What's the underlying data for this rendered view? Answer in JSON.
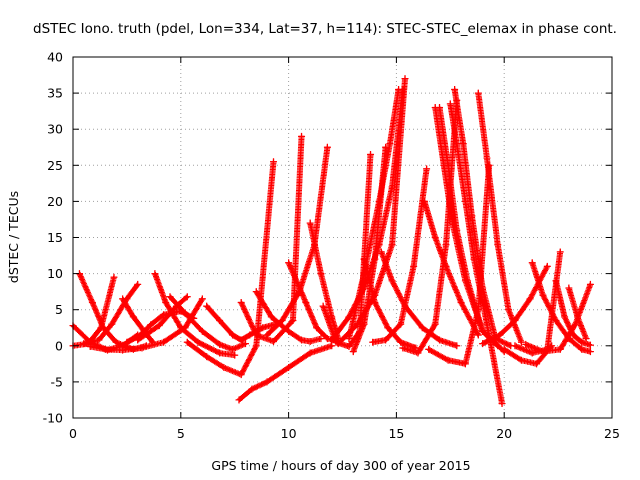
{
  "chart_data": {
    "type": "scatter",
    "title": "dSTEC Iono. truth (pdel, Lon=334, Lat=37, h=114): STEC-STEC_elemax in phase cont.",
    "xlabel": "GPS time / hours of day 300 of year 2015",
    "ylabel": "dSTEC  / TECUs",
    "xlim": [
      0,
      25
    ],
    "ylim": [
      -10,
      40
    ],
    "xticks": [
      0,
      5,
      10,
      15,
      20,
      25
    ],
    "yticks": [
      -10,
      -5,
      0,
      5,
      10,
      15,
      20,
      25,
      30,
      35,
      40
    ],
    "grid": true,
    "marker": "+",
    "color": "#ff0000",
    "series": [
      {
        "x": [
          0.0,
          0.8,
          1.6,
          2.3,
          3.0
        ],
        "y": [
          2.8,
          0.5,
          -0.6,
          0.0,
          1.5
        ]
      },
      {
        "x": [
          0.3,
          0.9,
          1.4,
          2.0,
          2.8,
          3.4
        ],
        "y": [
          10.0,
          6.0,
          2.5,
          0.5,
          -0.5,
          0.0
        ]
      },
      {
        "x": [
          0.0,
          0.7,
          1.3,
          1.9
        ],
        "y": [
          0.0,
          0.3,
          2.5,
          9.5
        ]
      },
      {
        "x": [
          0.5,
          1.2,
          1.8,
          2.5,
          3.0
        ],
        "y": [
          0.3,
          0.8,
          3.0,
          6.5,
          8.5
        ]
      },
      {
        "x": [
          0.8,
          1.5,
          2.3,
          3.2,
          4.2,
          5.2,
          6.0
        ],
        "y": [
          -0.1,
          -0.5,
          -0.6,
          -0.3,
          0.5,
          2.5,
          6.5
        ]
      },
      {
        "x": [
          2.3,
          2.8,
          3.3,
          3.7
        ],
        "y": [
          6.5,
          4.0,
          2.0,
          0.5
        ]
      },
      {
        "x": [
          3.8,
          4.3,
          5.0,
          5.8,
          6.8,
          7.5
        ],
        "y": [
          10.0,
          6.0,
          2.5,
          0.5,
          -1.0,
          -1.3
        ]
      },
      {
        "x": [
          3.0,
          4.0,
          4.8,
          5.3
        ],
        "y": [
          0.8,
          2.8,
          5.5,
          6.8
        ]
      },
      {
        "x": [
          2.5,
          3.1,
          3.6,
          4.2,
          5.0,
          5.6
        ],
        "y": [
          0.5,
          1.4,
          2.9,
          4.3,
          4.8,
          3.8
        ]
      },
      {
        "x": [
          4.5,
          5.2,
          6.0,
          6.8,
          7.4,
          8.0
        ],
        "y": [
          6.8,
          4.5,
          2.0,
          0.2,
          -0.5,
          0.3
        ]
      },
      {
        "x": [
          5.3,
          6.2,
          7.0,
          7.8,
          8.5,
          9.3
        ],
        "y": [
          0.5,
          -1.5,
          -3.0,
          -4.0,
          0.0,
          25.5
        ]
      },
      {
        "x": [
          6.2,
          6.8,
          7.4,
          7.8,
          8.2,
          8.8,
          9.4
        ],
        "y": [
          5.5,
          3.5,
          1.5,
          0.8,
          1.5,
          2.5,
          3.0
        ]
      },
      {
        "x": [
          7.7,
          8.3,
          9.0,
          10.0,
          11.0,
          12.0
        ],
        "y": [
          -7.5,
          -6.0,
          -5.0,
          -3.0,
          -1.0,
          0.0
        ]
      },
      {
        "x": [
          7.8,
          8.5,
          9.3,
          10.2,
          10.6
        ],
        "y": [
          6.0,
          1.5,
          0.6,
          3.5,
          29.0
        ]
      },
      {
        "x": [
          8.5,
          9.2,
          10.0,
          10.6,
          11.0,
          11.5
        ],
        "y": [
          7.5,
          4.0,
          2.0,
          0.8,
          0.6,
          1.0
        ]
      },
      {
        "x": [
          9.0,
          9.7,
          10.5,
          11.2,
          11.8
        ],
        "y": [
          1.5,
          3.5,
          7.5,
          14.0,
          27.5
        ]
      },
      {
        "x": [
          10.0,
          10.8,
          11.3,
          11.8,
          12.3
        ],
        "y": [
          11.5,
          6.0,
          2.5,
          1.0,
          0.6
        ]
      },
      {
        "x": [
          11.0,
          11.5,
          12.0,
          12.3
        ],
        "y": [
          17.0,
          10.0,
          4.0,
          1.0
        ]
      },
      {
        "x": [
          11.6,
          12.2,
          12.8,
          13.3,
          13.8
        ],
        "y": [
          5.5,
          0.5,
          -0.1,
          2.0,
          26.5
        ]
      },
      {
        "x": [
          12.0,
          12.8,
          13.5,
          14.2,
          14.8,
          15.3
        ],
        "y": [
          0.8,
          4.0,
          8.0,
          14.0,
          22.0,
          35.5
        ]
      },
      {
        "x": [
          12.3,
          13.2,
          14.0,
          14.8,
          15.4
        ],
        "y": [
          0.3,
          3.0,
          7.0,
          14.0,
          37.0
        ]
      },
      {
        "x": [
          12.8,
          13.5,
          14.2,
          14.7,
          15.1
        ],
        "y": [
          1.0,
          10.0,
          20.0,
          28.0,
          35.5
        ]
      },
      {
        "x": [
          13.0,
          13.5,
          14.0,
          14.5
        ],
        "y": [
          -0.8,
          3.0,
          12.0,
          27.5
        ]
      },
      {
        "x": [
          13.5,
          14.0,
          14.6,
          15.2,
          15.9
        ],
        "y": [
          12.0,
          6.0,
          2.5,
          0.5,
          -0.3
        ]
      },
      {
        "x": [
          13.9,
          14.5,
          15.2,
          15.8,
          16.4
        ],
        "y": [
          0.5,
          0.8,
          3.0,
          11.0,
          24.5
        ]
      },
      {
        "x": [
          14.3,
          14.8,
          15.4,
          16.2,
          17.0,
          17.8
        ],
        "y": [
          13.0,
          9.0,
          5.5,
          2.5,
          0.8,
          0.0
        ]
      },
      {
        "x": [
          15.3,
          16.0,
          16.8,
          17.3,
          17.8
        ],
        "y": [
          -0.3,
          -1.0,
          3.0,
          14.0,
          34.0
        ]
      },
      {
        "x": [
          16.3,
          16.8,
          17.3,
          18.0,
          18.8
        ],
        "y": [
          20.0,
          15.0,
          11.0,
          6.0,
          1.5
        ]
      },
      {
        "x": [
          16.8,
          17.2,
          17.6,
          18.2,
          19.0,
          20.0
        ],
        "y": [
          33.0,
          25.0,
          17.0,
          9.0,
          2.0,
          -0.8
        ]
      },
      {
        "x": [
          17.0,
          17.4,
          17.8,
          18.3,
          19.0,
          19.7
        ],
        "y": [
          33.0,
          25.0,
          16.0,
          9.0,
          2.0,
          0.0
        ]
      },
      {
        "x": [
          17.5,
          17.8,
          18.2,
          18.6,
          19.2,
          19.9
        ],
        "y": [
          33.5,
          28.0,
          20.0,
          12.0,
          3.0,
          -8.0
        ]
      },
      {
        "x": [
          16.5,
          17.4,
          18.2,
          18.8,
          19.3
        ],
        "y": [
          -0.5,
          -2.0,
          -2.5,
          5.0,
          25.0
        ]
      },
      {
        "x": [
          17.7,
          18.1,
          18.5,
          19.0,
          19.6,
          20.3
        ],
        "y": [
          35.5,
          28.0,
          18.0,
          8.0,
          1.0,
          0.0
        ]
      },
      {
        "x": [
          18.8,
          19.2,
          19.7,
          20.2,
          20.8
        ],
        "y": [
          35.0,
          26.0,
          14.0,
          5.0,
          0.5
        ]
      },
      {
        "x": [
          19.0,
          19.8,
          20.5,
          21.2,
          22.0
        ],
        "y": [
          0.3,
          1.5,
          3.5,
          6.5,
          11.0
        ]
      },
      {
        "x": [
          20.0,
          20.8,
          21.5,
          22.2
        ],
        "y": [
          -0.5,
          -2.0,
          -2.5,
          0.0
        ]
      },
      {
        "x": [
          21.3,
          21.8,
          22.4,
          23.0,
          23.6,
          24.0
        ],
        "y": [
          11.5,
          7.0,
          3.5,
          1.0,
          -0.5,
          -0.8
        ]
      },
      {
        "x": [
          20.5,
          21.3,
          22.0,
          22.6
        ],
        "y": [
          0.0,
          -1.0,
          -0.5,
          13.0
        ]
      },
      {
        "x": [
          21.0,
          21.8,
          22.6,
          23.3,
          24.0
        ],
        "y": [
          0.2,
          -0.8,
          -0.5,
          3.0,
          8.5
        ]
      },
      {
        "x": [
          22.4,
          22.8,
          23.2,
          23.6,
          24.0
        ],
        "y": [
          9.0,
          4.0,
          1.5,
          0.5,
          0.1
        ]
      },
      {
        "x": [
          23.0,
          23.4,
          23.8
        ],
        "y": [
          8.0,
          4.0,
          1.0
        ]
      }
    ]
  }
}
